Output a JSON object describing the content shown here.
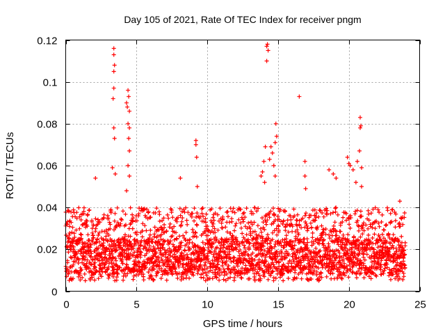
{
  "chart_data": {
    "type": "scatter",
    "title": "Day 105 of 2021, Rate Of TEC Index for receiver pngm",
    "xlabel": "GPS time / hours",
    "ylabel": "ROTI / TECUs",
    "xlim": [
      0,
      25
    ],
    "ylim": [
      0,
      0.12
    ],
    "xticks": [
      0,
      5,
      10,
      15,
      20,
      25
    ],
    "xtick_labels": [
      "0",
      "5",
      "10",
      "15",
      "20",
      "25"
    ],
    "yticks": [
      0,
      0.02,
      0.04,
      0.06,
      0.08,
      0.1,
      0.12
    ],
    "ytick_labels": [
      "0",
      "0.02",
      "0.04",
      "0.06",
      "0.08",
      "0.1",
      "0.12"
    ],
    "grid": true,
    "marker": "+",
    "color": "#ff0000",
    "series": [
      {
        "name": "ROTI",
        "bulk_range": {
          "x": [
            0,
            24
          ],
          "y": [
            0.005,
            0.04
          ],
          "typical": [
            0.008,
            0.025
          ]
        },
        "notable_points": [
          [
            3.4,
            0.116
          ],
          [
            3.4,
            0.113
          ],
          [
            3.45,
            0.108
          ],
          [
            3.4,
            0.105
          ],
          [
            3.4,
            0.097
          ],
          [
            3.35,
            0.092
          ],
          [
            3.4,
            0.078
          ],
          [
            3.45,
            0.073
          ],
          [
            3.3,
            0.059
          ],
          [
            3.5,
            0.056
          ],
          [
            4.3,
            0.09
          ],
          [
            4.35,
            0.088
          ],
          [
            4.4,
            0.096
          ],
          [
            4.45,
            0.093
          ],
          [
            4.5,
            0.086
          ],
          [
            4.4,
            0.08
          ],
          [
            4.5,
            0.078
          ],
          [
            4.45,
            0.073
          ],
          [
            4.5,
            0.067
          ],
          [
            4.4,
            0.06
          ],
          [
            4.5,
            0.055
          ],
          [
            4.3,
            0.048
          ],
          [
            2.1,
            0.054
          ],
          [
            8.1,
            0.054
          ],
          [
            9.2,
            0.072
          ],
          [
            9.2,
            0.07
          ],
          [
            9.25,
            0.064
          ],
          [
            9.3,
            0.05
          ],
          [
            14.1,
            0.069
          ],
          [
            14.0,
            0.062
          ],
          [
            13.9,
            0.057
          ],
          [
            14.05,
            0.052
          ],
          [
            13.8,
            0.055
          ],
          [
            14.2,
            0.117
          ],
          [
            14.25,
            0.118
          ],
          [
            14.3,
            0.115
          ],
          [
            14.2,
            0.11
          ],
          [
            14.4,
            0.063
          ],
          [
            14.5,
            0.069
          ],
          [
            14.6,
            0.066
          ],
          [
            14.7,
            0.06
          ],
          [
            14.8,
            0.071
          ],
          [
            14.85,
            0.08
          ],
          [
            14.9,
            0.074
          ],
          [
            14.8,
            0.055
          ],
          [
            16.5,
            0.093
          ],
          [
            16.9,
            0.062
          ],
          [
            16.9,
            0.055
          ],
          [
            16.95,
            0.049
          ],
          [
            18.6,
            0.058
          ],
          [
            18.9,
            0.056
          ],
          [
            19.1,
            0.054
          ],
          [
            19.9,
            0.064
          ],
          [
            20.0,
            0.061
          ],
          [
            20.1,
            0.06
          ],
          [
            20.3,
            0.058
          ],
          [
            20.5,
            0.052
          ],
          [
            20.6,
            0.062
          ],
          [
            20.8,
            0.083
          ],
          [
            20.85,
            0.079
          ],
          [
            20.8,
            0.078
          ],
          [
            20.75,
            0.067
          ],
          [
            20.9,
            0.059
          ],
          [
            20.9,
            0.05
          ],
          [
            23.6,
            0.043
          ]
        ]
      }
    ]
  }
}
